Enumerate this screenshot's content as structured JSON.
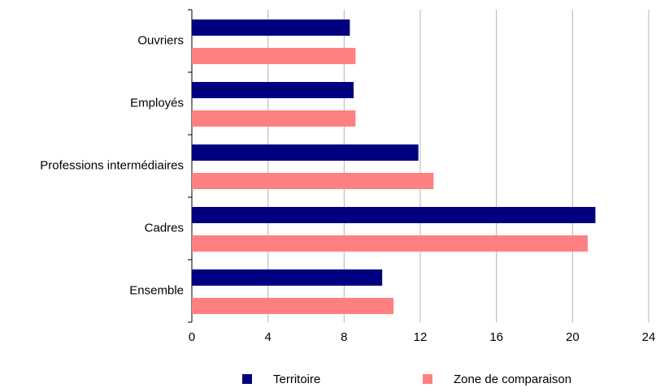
{
  "chart_data": {
    "type": "barh",
    "categories": [
      "Ouvriers",
      "Employés",
      "Professions intermédiaires",
      "Cadres",
      "Ensemble"
    ],
    "series": [
      {
        "name": "Territoire",
        "color": "#000080",
        "values": [
          8.3,
          8.5,
          11.9,
          21.2,
          10.0
        ]
      },
      {
        "name": "Zone de comparaison",
        "color": "#ff8080",
        "values": [
          8.6,
          8.6,
          12.7,
          20.8,
          10.6
        ]
      }
    ],
    "xlim": [
      0,
      24
    ],
    "xticks": [
      0,
      4,
      8,
      12,
      16,
      20,
      24
    ],
    "grid": true,
    "legend": "bottom"
  }
}
